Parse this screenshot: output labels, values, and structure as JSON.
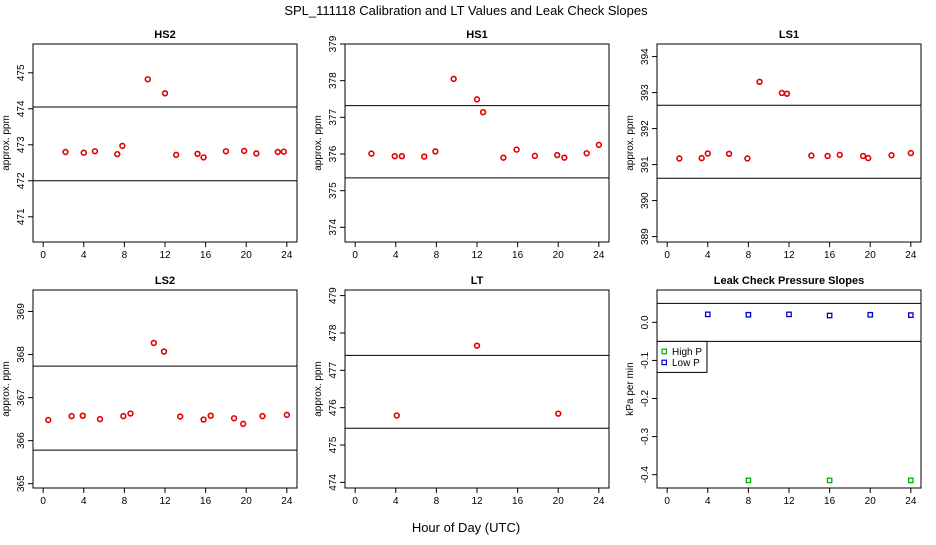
{
  "figure": {
    "title": "SPL_111118  Calibration and LT Values and Leak Check Slopes",
    "xlabel": "Hour of Day (UTC)"
  },
  "colors": {
    "cal_points": "#e00000",
    "high_p": "#00b000",
    "low_p": "#0000cc",
    "axes": "#000000"
  },
  "chart_data": [
    {
      "type": "scatter",
      "title": "HS2",
      "ylabel": "approx. ppm",
      "xlim": [
        -1,
        25
      ],
      "ylim": [
        470.3,
        475.8
      ],
      "xticks": [
        0,
        4,
        8,
        12,
        16,
        20,
        24
      ],
      "yticks": [
        471,
        472,
        473,
        474,
        475
      ],
      "hlines": [
        472.0,
        474.05
      ],
      "series": [
        {
          "name": "HS2",
          "color": "#e00000",
          "marker": "circle",
          "x": [
            2.2,
            4.0,
            5.1,
            7.3,
            7.8,
            10.3,
            12.0,
            13.1,
            15.2,
            15.8,
            18.0,
            19.8,
            21.0,
            23.1,
            23.7
          ],
          "y": [
            472.8,
            472.78,
            472.82,
            472.74,
            472.97,
            474.82,
            474.43,
            472.72,
            472.75,
            472.65,
            472.82,
            472.83,
            472.76,
            472.8,
            472.81
          ]
        }
      ]
    },
    {
      "type": "scatter",
      "title": "HS1",
      "ylabel": "approx. ppm",
      "xlim": [
        -1,
        25
      ],
      "ylim": [
        373.6,
        379.0
      ],
      "xticks": [
        0,
        4,
        8,
        12,
        16,
        20,
        24
      ],
      "yticks": [
        374,
        375,
        376,
        377,
        378,
        379
      ],
      "hlines": [
        375.35,
        377.32
      ],
      "series": [
        {
          "name": "HS1",
          "color": "#e00000",
          "marker": "circle",
          "x": [
            1.6,
            3.9,
            4.6,
            6.8,
            7.9,
            9.7,
            12.0,
            12.6,
            14.6,
            15.9,
            17.7,
            19.9,
            20.6,
            22.8,
            24.0
          ],
          "y": [
            376.01,
            375.94,
            375.94,
            375.93,
            376.07,
            378.05,
            377.49,
            377.14,
            375.9,
            376.12,
            375.95,
            375.97,
            375.9,
            376.02,
            376.25
          ]
        }
      ]
    },
    {
      "type": "scatter",
      "title": "LS1",
      "ylabel": "approx. ppm",
      "xlim": [
        -1,
        25
      ],
      "ylim": [
        388.85,
        394.35
      ],
      "xticks": [
        0,
        4,
        8,
        12,
        16,
        20,
        24
      ],
      "yticks": [
        389,
        390,
        391,
        392,
        393,
        394
      ],
      "hlines": [
        390.62,
        392.65
      ],
      "series": [
        {
          "name": "LS1",
          "color": "#e00000",
          "marker": "circle",
          "x": [
            1.2,
            3.4,
            4.0,
            6.1,
            7.9,
            9.1,
            11.3,
            11.8,
            14.2,
            15.8,
            17.0,
            19.3,
            19.8,
            22.1,
            24.0
          ],
          "y": [
            391.17,
            391.18,
            391.31,
            391.3,
            391.17,
            393.3,
            392.99,
            392.97,
            391.25,
            391.24,
            391.27,
            391.24,
            391.18,
            391.26,
            391.32
          ]
        }
      ]
    },
    {
      "type": "scatter",
      "title": "LS2",
      "ylabel": "approx. ppm",
      "xlim": [
        -1,
        25
      ],
      "ylim": [
        364.9,
        369.5
      ],
      "xticks": [
        0,
        4,
        8,
        12,
        16,
        20,
        24
      ],
      "yticks": [
        365,
        366,
        367,
        368,
        369
      ],
      "hlines": [
        365.78,
        367.73
      ],
      "series": [
        {
          "name": "LS2",
          "color": "#e00000",
          "marker": "circle",
          "x": [
            0.5,
            2.8,
            3.9,
            5.6,
            7.9,
            8.6,
            10.9,
            11.9,
            13.5,
            15.8,
            16.5,
            18.8,
            19.7,
            21.6,
            24.0
          ],
          "y": [
            366.48,
            366.57,
            366.58,
            366.5,
            366.57,
            366.63,
            368.27,
            368.07,
            366.56,
            366.49,
            366.58,
            366.52,
            366.39,
            366.57,
            366.6
          ]
        }
      ]
    },
    {
      "type": "scatter",
      "title": "LT",
      "ylabel": "approx. ppm",
      "xlim": [
        -1,
        25
      ],
      "ylim": [
        473.85,
        479.15
      ],
      "xticks": [
        0,
        4,
        8,
        12,
        16,
        20,
        24
      ],
      "yticks": [
        474,
        475,
        476,
        477,
        478,
        479
      ],
      "hlines": [
        475.45,
        477.4
      ],
      "series": [
        {
          "name": "LT",
          "color": "#e00000",
          "marker": "circle",
          "x": [
            4.1,
            12.0,
            20.0
          ],
          "y": [
            475.79,
            477.66,
            475.84
          ]
        }
      ]
    },
    {
      "type": "scatter",
      "title": "Leak Check Pressure Slopes",
      "ylabel": "kPa per min",
      "xlim": [
        -1,
        25
      ],
      "ylim": [
        -0.435,
        0.085
      ],
      "xticks": [
        0,
        4,
        8,
        12,
        16,
        20,
        24
      ],
      "yticks": [
        -0.4,
        -0.3,
        -0.2,
        -0.1,
        0.0
      ],
      "yticklabels": [
        "-0.4",
        "-0.3",
        "-0.2",
        "-0.1",
        "0.0"
      ],
      "hlines": [
        0.05,
        -0.05
      ],
      "legend": {
        "position": "left",
        "entries": [
          "High P",
          "Low P"
        ]
      },
      "series": [
        {
          "name": "High P",
          "color": "#00b000",
          "marker": "square",
          "x": [
            8,
            16,
            24
          ],
          "y": [
            -0.415,
            -0.415,
            -0.415
          ]
        },
        {
          "name": "Low P",
          "color": "#0000cc",
          "marker": "square",
          "x": [
            4,
            8,
            12,
            16,
            20,
            24
          ],
          "y": [
            0.021,
            0.02,
            0.021,
            0.018,
            0.02,
            0.019
          ]
        }
      ]
    }
  ]
}
